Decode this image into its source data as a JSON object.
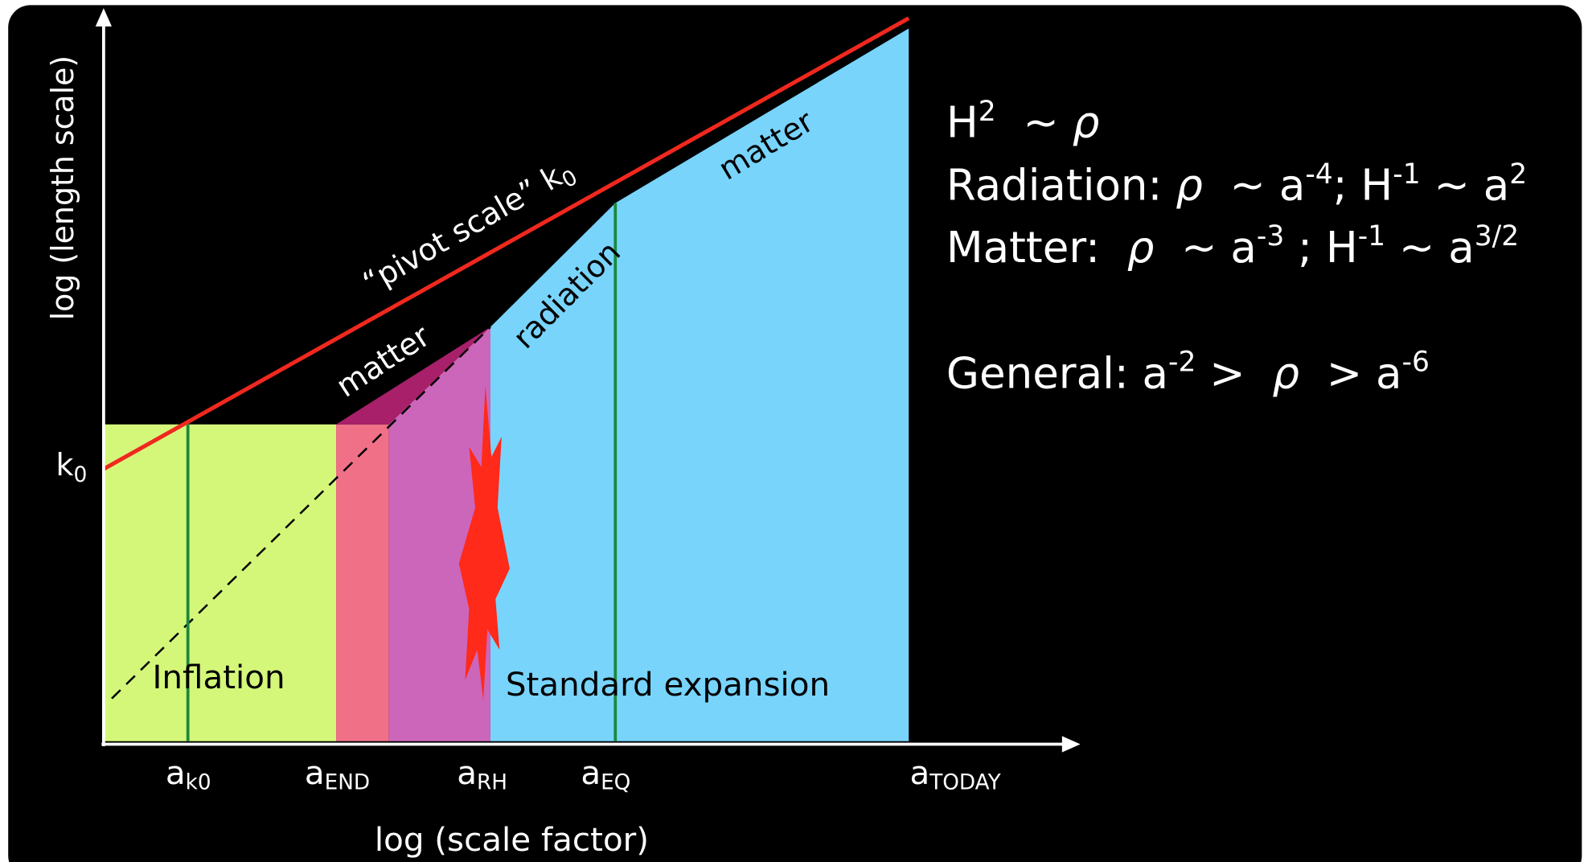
{
  "axes": {
    "y_label": "log (length scale)",
    "x_label": "log (scale factor)",
    "y_tick": {
      "main": "k",
      "sub": "0"
    },
    "x_ticks": [
      {
        "main": "a",
        "sub": "k0"
      },
      {
        "main": "a",
        "sub": "END"
      },
      {
        "main": "a",
        "sub": "RH"
      },
      {
        "main": "a",
        "sub": "EQ"
      },
      {
        "main": "a",
        "sub": "TODAY"
      }
    ]
  },
  "regions": {
    "inflation": "Inflation",
    "standard": "Standard expansion"
  },
  "curve_labels": {
    "pivot": {
      "main": "“pivot scale” k",
      "sub": "0"
    },
    "matter_early": "matter",
    "radiation": "radiation",
    "matter_late": "matter"
  },
  "equations": [
    [
      {
        "text": "H"
      },
      {
        "text": "2",
        "sup": true
      },
      {
        "text": "  ~ "
      },
      {
        "text": "ρ",
        "italic": true
      }
    ],
    [
      {
        "text": "Radiation: "
      },
      {
        "text": "ρ",
        "italic": true
      },
      {
        "text": "  ~ a"
      },
      {
        "text": "-4",
        "sup": true
      },
      {
        "text": "; H"
      },
      {
        "text": "-1",
        "sup": true
      },
      {
        "text": " ~ a"
      },
      {
        "text": "2",
        "sup": true
      }
    ],
    [
      {
        "text": "Matter:  "
      },
      {
        "text": "ρ",
        "italic": true
      },
      {
        "text": "  ~ a"
      },
      {
        "text": "-3",
        "sup": true
      },
      {
        "text": " ; H"
      },
      {
        "text": "-1",
        "sup": true
      },
      {
        "text": " ~ a"
      },
      {
        "text": "3/2",
        "sup": true
      }
    ],
    [
      {
        "text": "General: a"
      },
      {
        "text": "-2",
        "sup": true
      },
      {
        "text": " >  "
      },
      {
        "text": "ρ",
        "italic": true
      },
      {
        "text": "  > a"
      },
      {
        "text": "-6",
        "sup": true
      }
    ]
  ]
}
